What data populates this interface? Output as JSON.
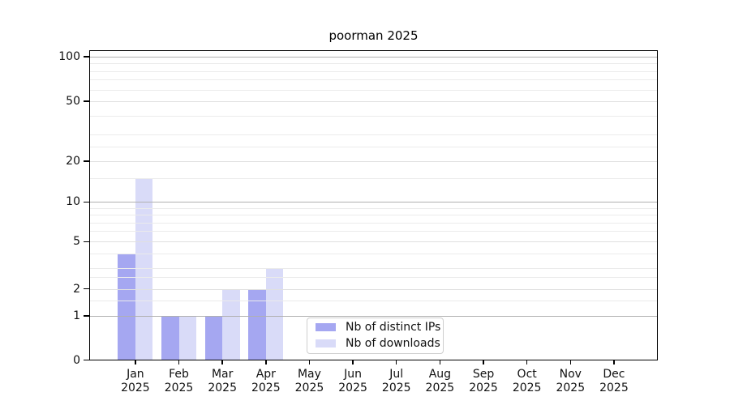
{
  "title": "poorman 2025",
  "chart_data": {
    "type": "bar",
    "title": "poorman 2025",
    "categories": [
      "Jan",
      "Feb",
      "Mar",
      "Apr",
      "May",
      "Jun",
      "Jul",
      "Aug",
      "Sep",
      "Oct",
      "Nov",
      "Dec"
    ],
    "year_label": "2025",
    "series": [
      {
        "name": "Nb of distinct IPs",
        "color": "#a5a7f1",
        "values": [
          4,
          1,
          1,
          2,
          0,
          0,
          0,
          0,
          0,
          0,
          0,
          0
        ]
      },
      {
        "name": "Nb of downloads",
        "color": "#d9dbf8",
        "values": [
          15,
          1,
          2,
          3,
          0,
          0,
          0,
          0,
          0,
          0,
          0,
          0
        ]
      }
    ],
    "y_axis": {
      "scale": "log-like",
      "tick_labels": [
        "0",
        "1",
        "2",
        "5",
        "10",
        "20",
        "50",
        "100"
      ],
      "tick_values": [
        0,
        1,
        2,
        5,
        10,
        20,
        50,
        100
      ],
      "decade_gridline_values": [
        1,
        10,
        100
      ],
      "labeled_minor_gridline_values": [
        2,
        5,
        20,
        50
      ],
      "minor_gridline_values": [
        1.5,
        2.5,
        3,
        4,
        6,
        7,
        8,
        9,
        15,
        25,
        30,
        40,
        60,
        70,
        80,
        90
      ],
      "ylim": [
        0,
        115
      ]
    },
    "grid": true,
    "legend_position": "lower center"
  },
  "colors": {
    "bar_distinct_ips": "#a5a7f1",
    "bar_downloads": "#d9dbf8",
    "grid_major": "#b0b0b0",
    "grid_labeled_minor": "#e0e0e0",
    "grid_minor": "#ebebeb",
    "spine": "#000000",
    "text": "#111111",
    "legend_border": "#cfcfcf"
  }
}
